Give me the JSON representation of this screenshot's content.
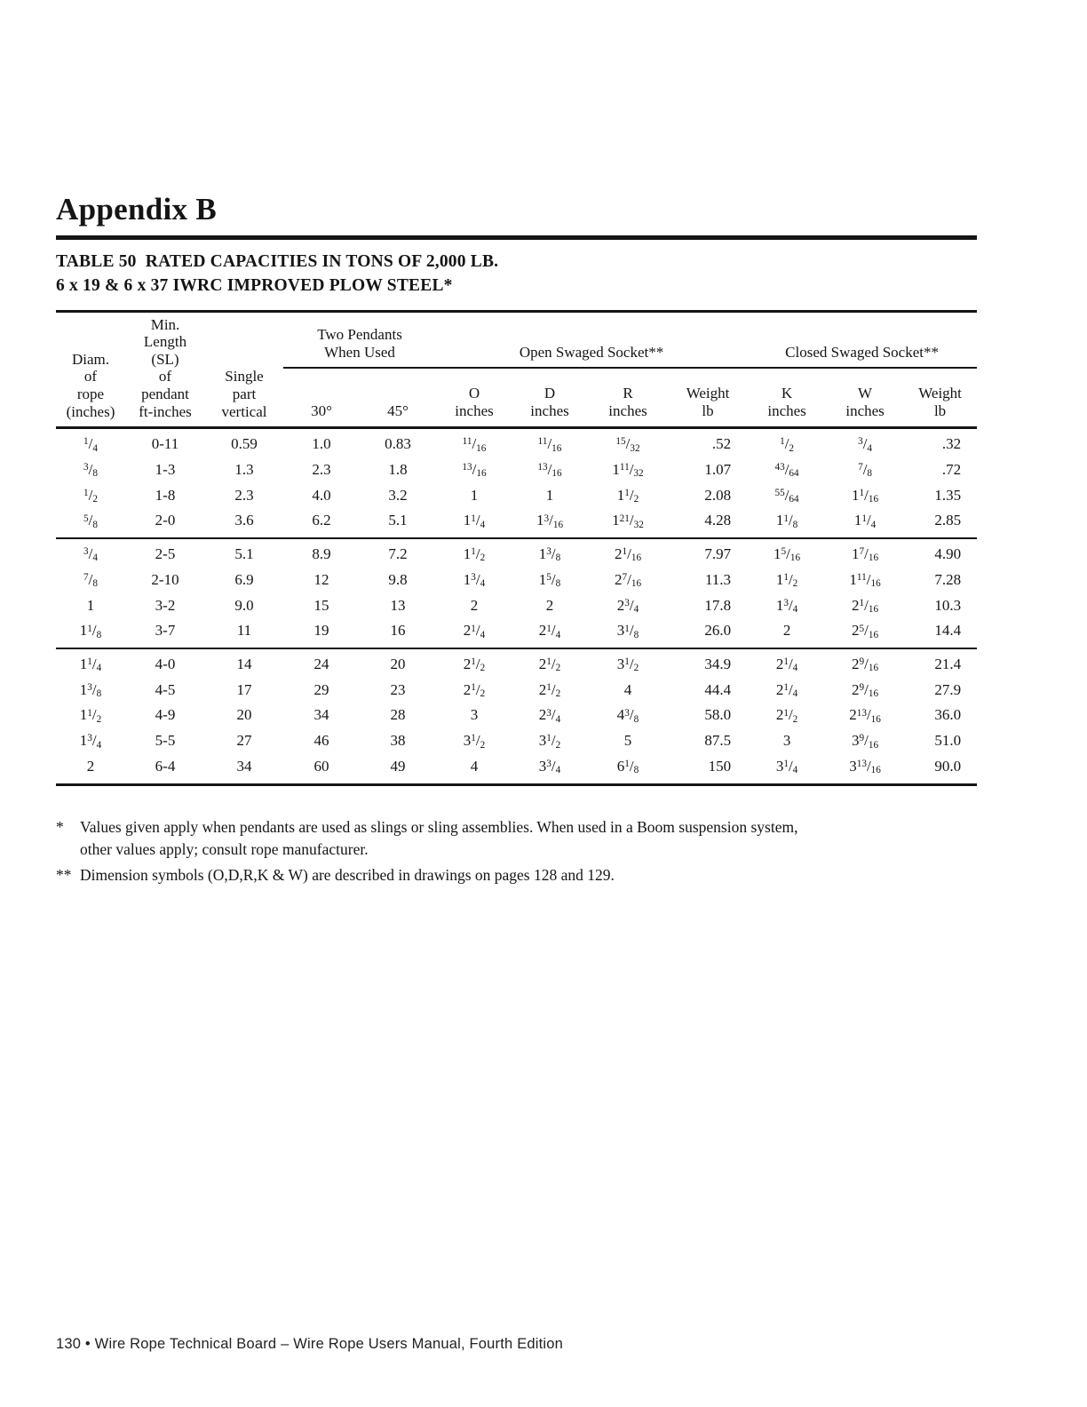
{
  "page": {
    "heading": "Appendix B",
    "title_line1": "TABLE 50  RATED CAPACITIES IN TONS OF 2,000 LB.",
    "title_line2": "6 x 19 & 6 x 37 IWRC IMPROVED PLOW STEEL*",
    "footer": "130 • Wire Rope Technical Board – Wire Rope Users Manual, Fourth Edition"
  },
  "table": {
    "stub_headers": [
      "Diam.\nof\nrope\n(inches)",
      "Min.\nLength\n(SL)\nof\npendant\nft-inches",
      "Single\npart\nvertical"
    ],
    "group_headers": [
      "Two Pendants\nWhen Used",
      "Open Swaged Socket**",
      "Closed Swaged Socket**"
    ],
    "sub_headers": [
      "30°",
      "45°",
      "O\ninches",
      "D\ninches",
      "R\ninches",
      "Weight\nlb",
      "K\ninches",
      "W\ninches",
      "Weight\nlb"
    ],
    "row_groups": [
      [
        [
          "1/4",
          "0-11",
          "0.59",
          "1.0",
          "0.83",
          "11/16",
          "11/16",
          "15/32",
          ".52",
          "1/2",
          "3/4",
          ".32"
        ],
        [
          "3/8",
          "1-3",
          "1.3",
          "2.3",
          "1.8",
          "13/16",
          "13/16",
          "1 11/32",
          "1.07",
          "43/64",
          "7/8",
          ".72"
        ],
        [
          "1/2",
          "1-8",
          "2.3",
          "4.0",
          "3.2",
          "1",
          "1",
          "1 1/2",
          "2.08",
          "55/64",
          "1 1/16",
          "1.35"
        ],
        [
          "5/8",
          "2-0",
          "3.6",
          "6.2",
          "5.1",
          "1 1/4",
          "1 3/16",
          "1 21/32",
          "4.28",
          "1 1/8",
          "1 1/4",
          "2.85"
        ]
      ],
      [
        [
          "3/4",
          "2-5",
          "5.1",
          "8.9",
          "7.2",
          "1 1/2",
          "1 3/8",
          "2 1/16",
          "7.97",
          "1 5/16",
          "1 7/16",
          "4.90"
        ],
        [
          "7/8",
          "2-10",
          "6.9",
          "12",
          "9.8",
          "1 3/4",
          "1 5/8",
          "2 7/16",
          "11.3",
          "1 1/2",
          "1 11/16",
          "7.28"
        ],
        [
          "1",
          "3-2",
          "9.0",
          "15",
          "13",
          "2",
          "2",
          "2 3/4",
          "17.8",
          "1 3/4",
          "2 1/16",
          "10.3"
        ],
        [
          "1 1/8",
          "3-7",
          "11",
          "19",
          "16",
          "2 1/4",
          "2 1/4",
          "3 1/8",
          "26.0",
          "2",
          "2 5/16",
          "14.4"
        ]
      ],
      [
        [
          "1 1/4",
          "4-0",
          "14",
          "24",
          "20",
          "2 1/2",
          "2 1/2",
          "3 1/2",
          "34.9",
          "2 1/4",
          "2 9/16",
          "21.4"
        ],
        [
          "1 3/8",
          "4-5",
          "17",
          "29",
          "23",
          "2 1/2",
          "2 1/2",
          "4",
          "44.4",
          "2 1/4",
          "2 9/16",
          "27.9"
        ],
        [
          "1 1/2",
          "4-9",
          "20",
          "34",
          "28",
          "3",
          "2 3/4",
          "4 3/8",
          "58.0",
          "2 1/2",
          "2 13/16",
          "36.0"
        ],
        [
          "1 3/4",
          "5-5",
          "27",
          "46",
          "38",
          "3 1/2",
          "3 1/2",
          "5",
          "87.5",
          "3",
          "3 9/16",
          "51.0"
        ],
        [
          "2",
          "6-4",
          "34",
          "60",
          "49",
          "4",
          "3 3/4",
          "6 1/8",
          "150",
          "3 1/4",
          "3 13/16",
          "90.0"
        ]
      ]
    ]
  },
  "footnotes": [
    {
      "marker": "*",
      "text": "Values given apply when pendants are used as slings or sling assemblies. When used in a Boom suspension system,\nother values apply; consult rope manufacturer."
    },
    {
      "marker": "**",
      "text": "Dimension symbols (O,D,R,K & W) are described in drawings on pages 128 and 129."
    }
  ]
}
